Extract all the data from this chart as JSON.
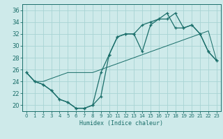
{
  "xlabel": "Humidex (Indice chaleur)",
  "bg_color": "#ceeaea",
  "grid_color": "#a8d4d4",
  "line_color": "#1a6e6a",
  "xlim": [
    -0.5,
    23.5
  ],
  "ylim": [
    19,
    37
  ],
  "yticks": [
    20,
    22,
    24,
    26,
    28,
    30,
    32,
    34,
    36
  ],
  "xticks": [
    0,
    1,
    2,
    3,
    4,
    5,
    6,
    7,
    8,
    9,
    10,
    11,
    12,
    13,
    14,
    15,
    16,
    17,
    18,
    19,
    20,
    21,
    22,
    23
  ],
  "line1_x": [
    0,
    1,
    2,
    3,
    4,
    5,
    6,
    7,
    8,
    9,
    10,
    11,
    12,
    13,
    14,
    15,
    16,
    17,
    18,
    19,
    20,
    21,
    22,
    23
  ],
  "line1_y": [
    25.5,
    24.0,
    23.5,
    22.5,
    21.0,
    20.5,
    19.5,
    19.5,
    20.0,
    21.5,
    28.5,
    31.5,
    32.0,
    32.0,
    29.0,
    33.5,
    34.5,
    34.5,
    35.5,
    33.0,
    33.5,
    32.0,
    29.0,
    27.5
  ],
  "line2_x": [
    0,
    1,
    2,
    3,
    4,
    5,
    6,
    7,
    8,
    9,
    10,
    11,
    12,
    13,
    14,
    15,
    16,
    17,
    18,
    19,
    20,
    21,
    22,
    23
  ],
  "line2_y": [
    25.5,
    24.0,
    24.0,
    24.5,
    25.0,
    25.5,
    25.5,
    25.5,
    25.5,
    26.0,
    26.5,
    27.0,
    27.5,
    28.0,
    28.5,
    29.0,
    29.5,
    30.0,
    30.5,
    31.0,
    31.5,
    32.0,
    32.5,
    27.5
  ],
  "line3_x": [
    0,
    1,
    2,
    3,
    4,
    5,
    6,
    7,
    8,
    9,
    10,
    11,
    12,
    13,
    14,
    15,
    16,
    17,
    18,
    19,
    20,
    21,
    22,
    23
  ],
  "line3_y": [
    25.5,
    24.0,
    23.5,
    22.5,
    21.0,
    20.5,
    19.5,
    19.5,
    20.0,
    25.5,
    28.5,
    31.5,
    32.0,
    32.0,
    33.5,
    34.0,
    34.5,
    35.5,
    33.0,
    33.0,
    33.5,
    32.0,
    29.0,
    27.5
  ]
}
